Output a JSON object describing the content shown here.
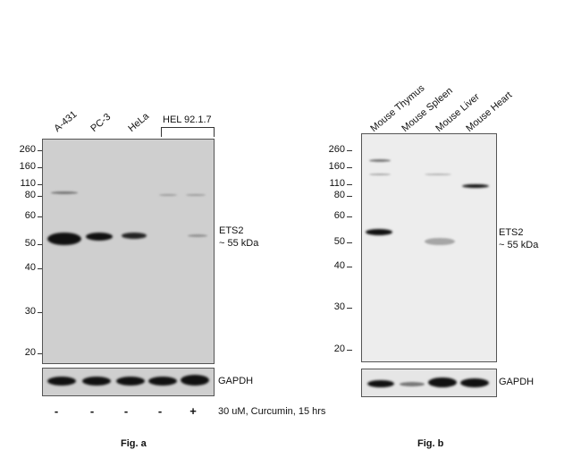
{
  "panel_a": {
    "lanes": [
      "A-431",
      "PC-3",
      "HeLa"
    ],
    "group_label": "HEL 92.1.7",
    "mw_markers": [
      "260",
      "160",
      "110",
      "80",
      "60",
      "50",
      "40",
      "30",
      "20"
    ],
    "target_label": "ETS2",
    "target_size": "~ 55 kDa",
    "loading_control": "GAPDH",
    "treatments": [
      "-",
      "-",
      "-",
      "-",
      "+"
    ],
    "treatment_label": "30 uM, Curcumin, 15 hrs",
    "caption": "Fig. a"
  },
  "panel_b": {
    "lanes": [
      "Mouse Thymus",
      "Mouse Spleen",
      "Mouse Liver",
      "Mouse Heart"
    ],
    "mw_markers": [
      "260",
      "160",
      "110",
      "80",
      "60",
      "50",
      "40",
      "30",
      "20"
    ],
    "target_label": "ETS2",
    "target_size": "~ 55 kDa",
    "loading_control": "GAPDH",
    "caption": "Fig. b"
  }
}
